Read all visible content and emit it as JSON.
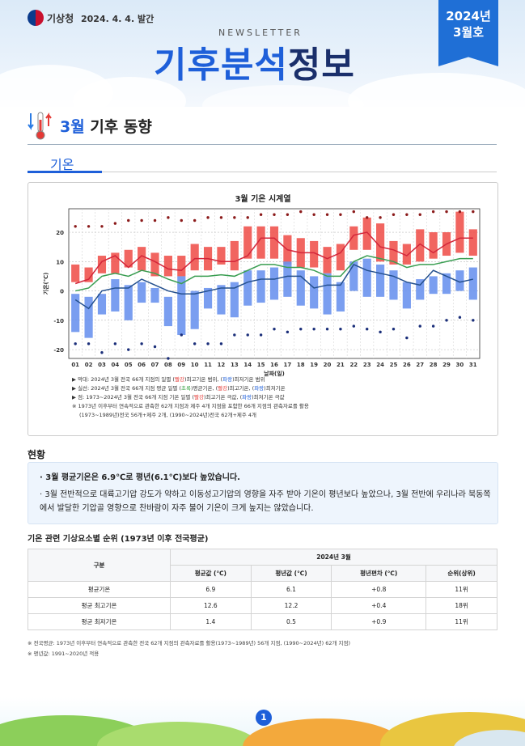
{
  "header": {
    "org": "기상청",
    "issue_date": "2024. 4. 4. 발간",
    "newsletter": "NEWSLETTER",
    "title_part1": "기후분석",
    "title_part2": "정보",
    "edition_year": "2024년",
    "edition_month": "3월호"
  },
  "section": {
    "month": "3월",
    "title": " 기후 동향",
    "subtitle": "기온"
  },
  "chart_data": {
    "type": "bar",
    "title": "3월 기온 시계열",
    "xlabel": "날짜(일)",
    "ylabel": "기온(℃)",
    "ylim": [
      -23,
      28
    ],
    "yticks": [
      20,
      10,
      0,
      -10,
      -20
    ],
    "grid": true,
    "categories": [
      "01",
      "02",
      "03",
      "04",
      "05",
      "06",
      "07",
      "08",
      "09",
      "10",
      "11",
      "12",
      "13",
      "14",
      "15",
      "16",
      "17",
      "18",
      "19",
      "20",
      "21",
      "22",
      "23",
      "24",
      "25",
      "26",
      "27",
      "28",
      "29",
      "30",
      "31"
    ],
    "series": [
      {
        "name": "최고기온 범위",
        "color": "#f0544f",
        "low": [
          3,
          3,
          6,
          6,
          8,
          7,
          5,
          5,
          5,
          7,
          7,
          9,
          7,
          11,
          11,
          11,
          9,
          8,
          8,
          6,
          7,
          14,
          14,
          10,
          9,
          9,
          10,
          11,
          12,
          13,
          12
        ],
        "high": [
          9,
          8,
          12,
          13,
          14,
          15,
          13,
          12,
          12,
          16,
          15,
          15,
          17,
          22,
          22,
          22,
          19,
          18,
          17,
          15,
          16,
          22,
          25,
          23,
          17,
          16,
          21,
          20,
          20,
          27,
          21
        ]
      },
      {
        "name": "최저기온 범위",
        "color": "#6b93ee",
        "low": [
          -14,
          -16,
          -8,
          -7,
          -10,
          -4,
          -4,
          -12,
          -15,
          -13,
          -6,
          -8,
          -9,
          -5,
          -4,
          -3,
          -2,
          -5,
          -6,
          -8,
          -7,
          0,
          -2,
          -2,
          -3,
          -6,
          -3,
          -1,
          -1,
          0,
          -3
        ],
        "high": [
          -1,
          -2,
          -1,
          4,
          2,
          3,
          1,
          -2,
          5,
          0,
          1,
          2,
          3,
          7,
          7,
          8,
          10,
          7,
          5,
          6,
          3,
          10,
          11,
          9,
          7,
          3,
          4,
          5,
          6,
          7,
          8
        ]
      },
      {
        "name": "평균 최고기온",
        "color": "#d3263a",
        "values": [
          2.5,
          4,
          10,
          12,
          8,
          12,
          10,
          7.5,
          7,
          11,
          11,
          10,
          10,
          12,
          18,
          18,
          14,
          13,
          13,
          11,
          13,
          19,
          20,
          15,
          14,
          12,
          16,
          13,
          16,
          18,
          18
        ]
      },
      {
        "name": "평균기온",
        "color": "#3a9e52",
        "values": [
          0,
          1,
          5,
          6,
          5,
          7,
          6,
          4,
          2.5,
          5,
          5,
          5.5,
          5,
          7,
          9,
          9,
          8,
          8,
          7,
          5,
          5,
          10,
          12,
          11,
          10,
          8,
          9,
          9,
          10,
          11,
          11
        ]
      },
      {
        "name": "평균 최저기온",
        "color": "#24508e",
        "values": [
          -3,
          -6,
          0,
          1,
          1,
          4,
          2,
          0,
          -1,
          -1,
          0,
          1,
          1,
          3,
          4,
          4,
          5,
          5,
          1,
          2,
          2,
          9,
          7,
          6,
          5,
          3,
          2,
          7,
          5,
          3,
          4
        ]
      },
      {
        "name": "최고기온 극값",
        "color": "#8b1a1a",
        "values": [
          22,
          22,
          22,
          23,
          24,
          24,
          24,
          25,
          24,
          24,
          25,
          25,
          25,
          25,
          26,
          26,
          26,
          27,
          26,
          26,
          26,
          27,
          25,
          25,
          26,
          26,
          26,
          27,
          27,
          27,
          27
        ]
      },
      {
        "name": "최저기온 극값",
        "color": "#1b2f7a",
        "values": [
          -18,
          -18,
          -21,
          -18,
          -20,
          -18,
          -19,
          -23,
          -15,
          -18,
          -18,
          -18,
          -15,
          -15,
          -15,
          -13,
          -14,
          -13,
          -13,
          -13,
          -13,
          -12,
          -13,
          -14,
          -13,
          -16,
          -12,
          -12,
          -10,
          -9,
          -10
        ]
      }
    ]
  },
  "notes": {
    "l1": {
      "a": "▶ 막대: 2024년 3월 전국 66개 지점의 일별 (",
      "r": "빨강",
      "b": ")최고기온 범위, (",
      "bl": "파랑",
      "c": ")최저기온 범위"
    },
    "l2": {
      "a": "▶ 실선: 2024년 3월 전국 66개 지점 평균 일별 (",
      "g": "초록",
      "b": ")평균기온, (",
      "r": "빨강",
      "c": ")최고기온, (",
      "bl": "파랑",
      "d": ")최저기온"
    },
    "l3": {
      "a": "▶ 점: 1973~2024년 3월 전국 66개 지점 기온 일별 (",
      "r": "빨강",
      "b": ")최고기온 극값, (",
      "bl": "파랑",
      "c": ")최저기온 극값"
    },
    "l4": "※ 1973년 이후부터 연속적으로 관측한 62개 지점과 제주 4개 지점을 포함한 66개 지점의 관측자료를 활용",
    "l5": "(1973~1989년)전국 56개+제주 2개, (1990~2024년)전국 62개+제주 4개"
  },
  "status": {
    "title": "현황",
    "p1": "· 3월 평균기온은 6.9℃로 평년(6.1℃)보다 높았습니다.",
    "p2": "· 3월 전반적으로 대륙고기압 강도가 약하고 이동성고기압의 영향을 자주 받아 기온이 평년보다 높았으나, 3월 전반에 우리나라 북동쪽에서 발달한 기압골 영향으로 찬바람이 자주 불어 기온이 크게 높지는 않았습니다."
  },
  "table": {
    "title": "기온 관련 기상요소별 순위 (1973년 이후 전국평균)",
    "col_group": "구분",
    "col_year": "2024년 3월",
    "headers": [
      "평균값 (℃)",
      "평년값 (℃)",
      "평년편차 (℃)",
      "순위(상위)"
    ],
    "rows": [
      {
        "name": "평균기온",
        "v": [
          "6.9",
          "6.1",
          "+0.8",
          "11위"
        ]
      },
      {
        "name": "평균 최고기온",
        "v": [
          "12.6",
          "12.2",
          "+0.4",
          "18위"
        ]
      },
      {
        "name": "평균 최저기온",
        "v": [
          "1.4",
          "0.5",
          "+0.9",
          "11위"
        ]
      }
    ]
  },
  "footnotes": {
    "f1": "※ 전국평균: 1973년 이후부터 연속적으로 관측한 전국 62개 지점의 관측자료를 활용(1973~1989년) 56개 지점, (1990~2024년) 62개 지점)",
    "f2": "※ 평년값: 1991~2020년 적용"
  },
  "page_number": "1"
}
